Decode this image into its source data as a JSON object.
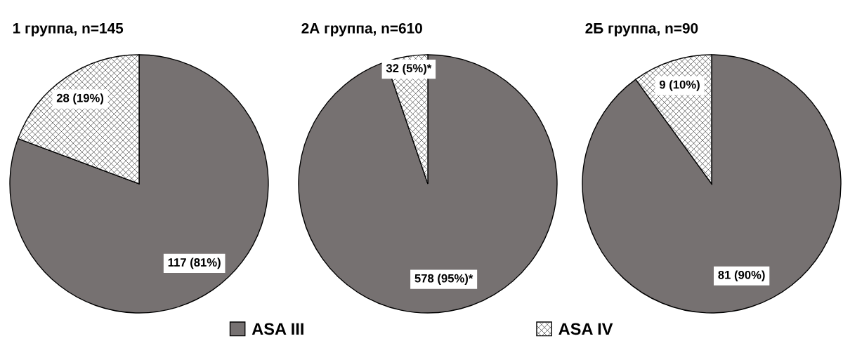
{
  "chart_data": [
    {
      "type": "pie",
      "title": "1 группа, n=145",
      "categories": [
        "ASA III",
        "ASA IV"
      ],
      "values": [
        117,
        28
      ],
      "colors": [
        "#767171",
        "#ffffff"
      ],
      "value_labels": [
        "117 (81%)",
        "28 (19%)"
      ],
      "legend": "bottom"
    },
    {
      "type": "pie",
      "title": "2А группа, n=610",
      "categories": [
        null,
        null
      ],
      "values": [
        578,
        32
      ],
      "colors": [
        "#767171",
        "#ffffff"
      ],
      "value_labels": [
        "578 (95%)*",
        "32 (5%)*"
      ]
    },
    {
      "type": "pie",
      "title": "2Б группа, n=90",
      "categories": [
        null,
        null
      ],
      "values": [
        81,
        9
      ],
      "colors": [
        "#767171",
        "#ffffff"
      ],
      "value_labels": [
        "81 (90%)",
        "9 (10%)"
      ]
    }
  ]
}
